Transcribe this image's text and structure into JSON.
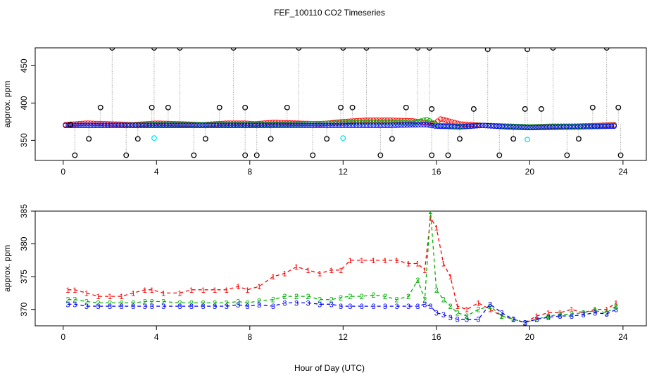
{
  "title": "FEF_100110  CO2 Timeseries",
  "xlabel": "Hour of Day (UTC)",
  "colors": {
    "black": "#000000",
    "red": "#ff0000",
    "green": "#00b000",
    "blue": "#0000ff",
    "cyan": "#00e5ee",
    "gray": "#9a9a9a"
  },
  "chart_data": [
    {
      "type": "scatter",
      "ylabel": "approx. ppm",
      "xlim": [
        -1.2,
        25
      ],
      "ylim": [
        323,
        474
      ],
      "xticks": [
        0,
        4,
        8,
        12,
        16,
        20,
        24
      ],
      "yticks": [
        350,
        400,
        450
      ],
      "series": [
        {
          "color": "#ff0000",
          "x": [
            0.1,
            1,
            2,
            3,
            4,
            5,
            6,
            7,
            7.8,
            8.2,
            9,
            10,
            11,
            12,
            12.5,
            13,
            14,
            15,
            15.5,
            15.9,
            16.2,
            16.5,
            17,
            18,
            19,
            20,
            21,
            22,
            23,
            23.7
          ],
          "y": [
            371,
            373,
            372,
            371,
            373,
            372,
            371,
            373,
            373,
            372,
            374,
            373,
            372,
            375,
            376,
            377,
            377,
            376,
            374,
            372,
            379,
            376,
            372,
            370,
            369,
            368,
            369,
            369,
            370,
            371
          ]
        },
        {
          "color": "#00b000",
          "x": [
            0.1,
            2,
            4,
            6,
            8,
            10,
            12,
            13,
            14,
            15,
            15.6,
            16,
            17,
            18,
            19,
            20,
            22,
            23.7
          ],
          "y": [
            370,
            370,
            371,
            371,
            371,
            372,
            373,
            374,
            374,
            373,
            378,
            370,
            369,
            370,
            369,
            368,
            369,
            370
          ]
        },
        {
          "color": "#0000ff",
          "x": [
            0.1,
            2,
            4,
            6,
            8,
            10,
            12,
            14,
            15.5,
            16,
            17,
            18,
            19,
            20,
            22,
            23.7
          ],
          "y": [
            370,
            370,
            370,
            370,
            370,
            370,
            370,
            370,
            371,
            369,
            368,
            370,
            368,
            367,
            368,
            369
          ]
        },
        {
          "color": "#000000",
          "name": "",
          "x": [
            0.3,
            0.5,
            1.1,
            1.6,
            2.1,
            2.7,
            3.2,
            3.8,
            3.9,
            4.5,
            5,
            5.6,
            6.1,
            6.7,
            7.3,
            7.8,
            7.8,
            8.3,
            8.9,
            9.6,
            10.1,
            10.7,
            11.3,
            11.9,
            12,
            12.4,
            13,
            13.6,
            14.1,
            14.7,
            15.2,
            15.7,
            15.8,
            15.8,
            16.5,
            17,
            17.6,
            18.2,
            18.7,
            19.3,
            19.8,
            19.9,
            20.5,
            21,
            21.6,
            22.1,
            22.7,
            23.3,
            23.8,
            23.9
          ],
          "y": [
            371,
            330,
            352,
            394,
            474,
            330,
            352,
            394,
            474,
            394,
            474,
            330,
            352,
            394,
            474,
            394,
            330,
            330,
            352,
            394,
            474,
            330,
            352,
            394,
            474,
            394,
            474,
            330,
            352,
            394,
            474,
            474,
            392,
            330,
            330,
            352,
            392,
            472,
            330,
            352,
            392,
            472,
            392,
            474,
            330,
            352,
            394,
            474,
            394,
            330
          ]
        },
        {
          "color": "#00e5ee",
          "x": [
            3.9,
            12,
            19.9
          ],
          "y": [
            353,
            353,
            351
          ]
        }
      ]
    },
    {
      "type": "line",
      "ylabel": "approx. ppm",
      "xlim": [
        -1.2,
        25
      ],
      "ylim": [
        367.5,
        385
      ],
      "xticks": [
        0,
        4,
        8,
        12,
        16,
        20,
        24
      ],
      "yticks": [
        370,
        375,
        380,
        385
      ],
      "series": [
        {
          "color": "#ff0000",
          "marker": "1",
          "x": [
            0.2,
            0.5,
            1,
            1.5,
            2,
            2.5,
            3,
            3.5,
            3.8,
            4.3,
            5,
            5.5,
            6,
            6.5,
            7,
            7.5,
            7.9,
            8.4,
            9,
            9.5,
            10,
            10.5,
            11,
            11.5,
            11.9,
            12.3,
            12.8,
            13.3,
            13.8,
            14.3,
            14.8,
            15.2,
            15.5,
            15.75,
            16,
            16.3,
            16.6,
            16.9,
            17.3,
            17.8,
            18.3,
            18.8,
            19.3,
            19.8,
            20.3,
            20.8,
            21.3,
            21.8,
            22.3,
            22.8,
            23.3,
            23.7
          ],
          "y": [
            373,
            373,
            372.5,
            372,
            372,
            372,
            372.5,
            373,
            373,
            372.5,
            372.5,
            373,
            373,
            373,
            373,
            373.5,
            373,
            373.5,
            375,
            375.5,
            376.5,
            376,
            375.5,
            376,
            376,
            377.5,
            377.5,
            377.5,
            377.5,
            377.5,
            377,
            377,
            376,
            384,
            382.5,
            377,
            375,
            370.5,
            370,
            371,
            370,
            369,
            368.5,
            368,
            369,
            369.5,
            369.5,
            370,
            369.5,
            370,
            370,
            371
          ]
        },
        {
          "color": "#00b000",
          "marker": "2",
          "x": [
            0.2,
            0.5,
            1,
            1.5,
            2,
            2.5,
            3,
            3.5,
            3.8,
            4.3,
            5,
            5.5,
            6,
            6.5,
            7,
            7.5,
            7.9,
            8.4,
            9,
            9.5,
            10,
            10.5,
            11,
            11.5,
            11.9,
            12.3,
            12.8,
            13.3,
            13.8,
            14.3,
            14.8,
            15.2,
            15.5,
            15.75,
            16,
            16.3,
            16.6,
            16.9,
            17.3,
            17.8,
            18.3,
            18.8,
            19.3,
            19.8,
            20.3,
            20.8,
            21.3,
            21.8,
            22.3,
            22.8,
            23.3,
            23.7
          ],
          "y": [
            371.5,
            371.5,
            371.2,
            371,
            371,
            371,
            371,
            371.2,
            371.2,
            371.2,
            371,
            371,
            371,
            371,
            371,
            371.2,
            371,
            371.3,
            371.5,
            372,
            372,
            372,
            371.5,
            371.5,
            371.8,
            372,
            372,
            372.2,
            372,
            371.5,
            372,
            374.5,
            371.5,
            385,
            373,
            371.5,
            370.5,
            369.5,
            369,
            370,
            370.5,
            369,
            368.5,
            368,
            368.5,
            369,
            369.2,
            369.3,
            369.5,
            369.8,
            369.5,
            370.5
          ]
        },
        {
          "color": "#0000ff",
          "marker": "3",
          "x": [
            0.2,
            0.5,
            1,
            1.5,
            2,
            2.5,
            3,
            3.5,
            3.8,
            4.3,
            5,
            5.5,
            6,
            6.5,
            7,
            7.5,
            7.9,
            8.4,
            9,
            9.5,
            10,
            10.5,
            11,
            11.5,
            11.9,
            12.3,
            12.8,
            13.3,
            13.8,
            14.3,
            14.8,
            15.2,
            15.5,
            15.75,
            16,
            16.3,
            16.6,
            16.9,
            17.3,
            17.8,
            18.3,
            18.8,
            19.3,
            19.8,
            20.3,
            20.8,
            21.3,
            21.8,
            22.3,
            22.8,
            23.3,
            23.7
          ],
          "y": [
            370.8,
            370.8,
            370.5,
            370.5,
            370.5,
            370.5,
            370.5,
            370.5,
            370.5,
            370.5,
            370.5,
            370.5,
            370.5,
            370.5,
            370.5,
            370.7,
            370.5,
            370.7,
            370.5,
            371,
            371,
            371,
            370.8,
            370.8,
            370.5,
            370.5,
            370.5,
            370.5,
            370.5,
            370.5,
            370.5,
            370.5,
            370.8,
            370.5,
            369.5,
            369.2,
            368.8,
            368.5,
            368.5,
            368.5,
            370.8,
            369.5,
            368.5,
            368,
            368.5,
            368.8,
            369,
            369,
            369.2,
            369.5,
            369.3,
            370
          ]
        }
      ]
    }
  ]
}
